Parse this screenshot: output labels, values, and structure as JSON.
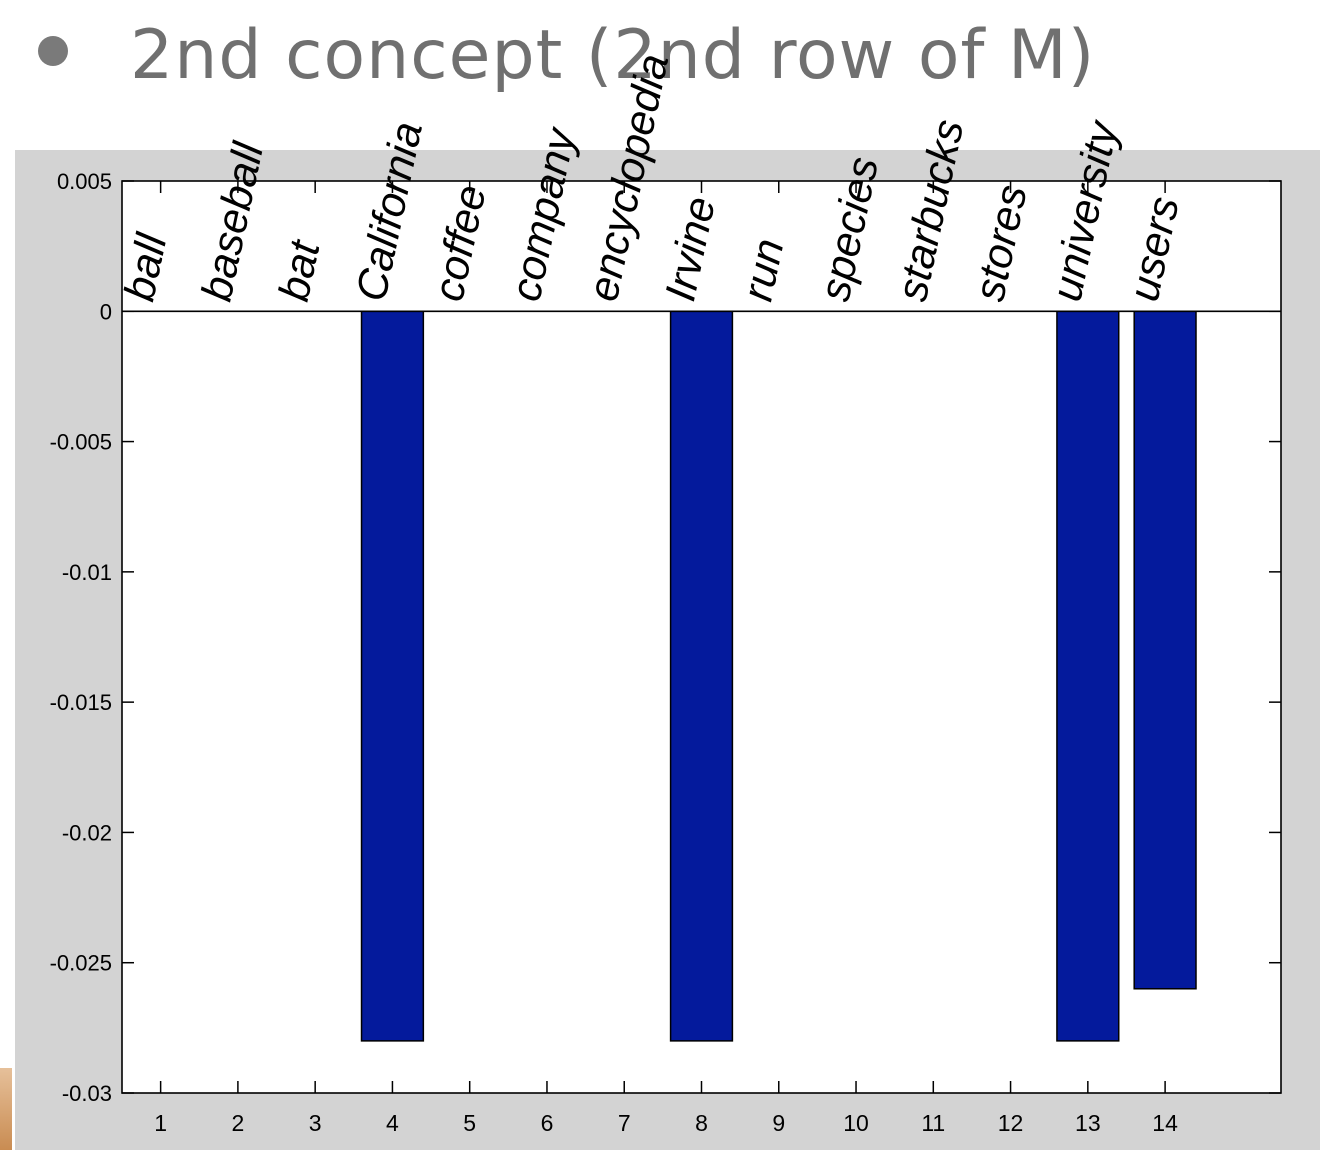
{
  "slide": {
    "title": "2nd concept (2nd row of M)"
  },
  "colors": {
    "bar": "#041a9c",
    "figure_background": "#d3d3d3",
    "plot_background": "#ffffff",
    "title_text": "#707070"
  },
  "chart_data": {
    "type": "bar",
    "categories": [
      "1",
      "2",
      "3",
      "4",
      "5",
      "6",
      "7",
      "8",
      "9",
      "10",
      "11",
      "12",
      "13",
      "14"
    ],
    "values": [
      0,
      0,
      0,
      -0.028,
      0,
      0,
      0,
      -0.028,
      0,
      0,
      0,
      0,
      -0.028,
      -0.026
    ],
    "word_labels": [
      "ball",
      "baseball",
      "bat",
      "California",
      "coffee",
      "company",
      "encyclopedia",
      "Irvine",
      "run",
      "species",
      "starbucks",
      "stores",
      "university",
      "users"
    ],
    "yticks": [
      0.005,
      0,
      -0.005,
      -0.01,
      -0.015,
      -0.02,
      -0.025,
      -0.03
    ],
    "ytick_labels": [
      "0.005",
      "0",
      "-0.005",
      "-0.01",
      "-0.015",
      "-0.02",
      "-0.025",
      "-0.03"
    ],
    "ylim": [
      -0.03,
      0.005
    ],
    "xlim": [
      0.5,
      15.5
    ],
    "grid": false,
    "title": "",
    "xlabel": "",
    "ylabel": ""
  }
}
